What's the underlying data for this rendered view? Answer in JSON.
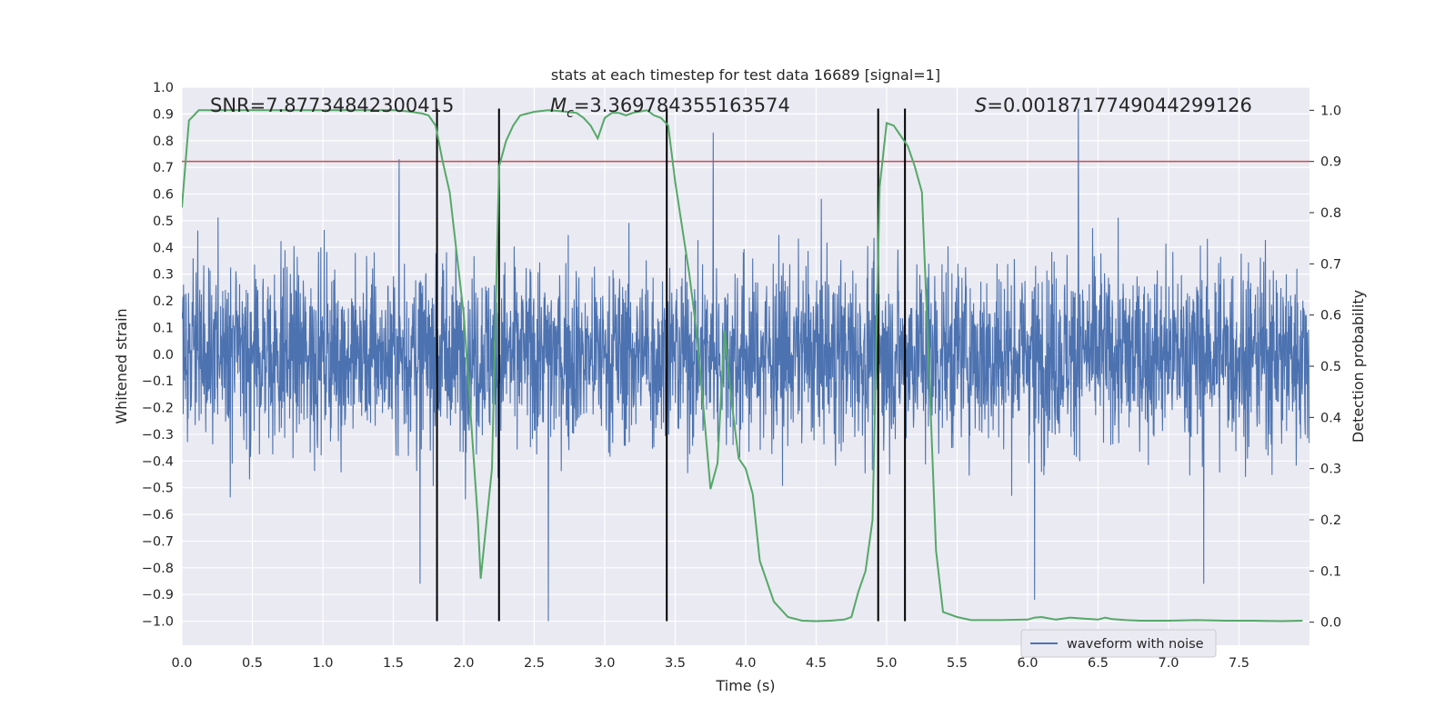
{
  "chart_data": {
    "type": "line",
    "title": "stats at each timestep for test data 16689 [signal=1]",
    "xlabel": "Time (s)",
    "ylabel": "Whitened strain",
    "y2label": "Detection probability",
    "xlim": [
      0.0,
      8.0
    ],
    "ylim": [
      -1.09,
      1.0
    ],
    "y2lim": [
      -0.045,
      1.045
    ],
    "xticks": [
      "0.0",
      "0.5",
      "1.0",
      "1.5",
      "2.0",
      "2.5",
      "3.0",
      "3.5",
      "4.0",
      "4.5",
      "5.0",
      "5.5",
      "6.0",
      "6.5",
      "7.0",
      "7.5"
    ],
    "yticks": [
      "1.0",
      "0.9",
      "0.8",
      "0.7",
      "0.6",
      "0.5",
      "0.4",
      "0.3",
      "0.2",
      "0.1",
      "0.0",
      "−0.1",
      "−0.2",
      "−0.3",
      "−0.4",
      "−0.5",
      "−0.6",
      "−0.7",
      "−0.8",
      "−0.9",
      "−1.0"
    ],
    "y2ticks": [
      "1.0",
      "0.9",
      "0.8",
      "0.7",
      "0.6",
      "0.5",
      "0.4",
      "0.3",
      "0.2",
      "0.1",
      "0.0"
    ],
    "annotations": {
      "snr": "SNR=7.87734842300415",
      "mc_symbol": "M",
      "mc_sub": "c",
      "mc_value": "=3.369784355163574",
      "s_symbol": "S",
      "s_value": "=0.0018717749044299126"
    },
    "legend": {
      "label": "waveform with noise",
      "location": "lower-right"
    },
    "series": [
      {
        "name": "waveform with noise",
        "axis": "left",
        "color": "#4c72b0",
        "description": "dense noisy whitened strain spanning roughly -1.0 to 0.92, bulk within about +/-0.35",
        "peaks": [
          [
            1.54,
            0.73
          ],
          [
            3.77,
            0.83
          ],
          [
            6.36,
            0.92
          ]
        ],
        "troughs": [
          [
            1.69,
            -0.86
          ],
          [
            2.6,
            -1.0
          ],
          [
            6.05,
            -0.92
          ],
          [
            7.25,
            -0.86
          ]
        ]
      },
      {
        "name": "",
        "axis": "right",
        "color": "#55a868",
        "x": [
          0.0,
          0.05,
          0.12,
          0.2,
          0.3,
          0.5,
          0.7,
          0.9,
          1.1,
          1.3,
          1.5,
          1.6,
          1.7,
          1.75,
          1.8,
          1.85,
          1.9,
          2.0,
          2.05,
          2.1,
          2.12,
          2.2,
          2.25,
          2.3,
          2.35,
          2.4,
          2.5,
          2.6,
          2.7,
          2.8,
          2.85,
          2.9,
          2.95,
          3.0,
          3.05,
          3.1,
          3.15,
          3.2,
          3.3,
          3.35,
          3.4,
          3.45,
          3.5,
          3.6,
          3.65,
          3.7,
          3.75,
          3.8,
          3.85,
          3.9,
          3.95,
          4.0,
          4.05,
          4.1,
          4.2,
          4.3,
          4.4,
          4.5,
          4.6,
          4.7,
          4.75,
          4.8,
          4.85,
          4.9,
          4.95,
          5.0,
          5.05,
          5.1,
          5.15,
          5.2,
          5.25,
          5.3,
          5.35,
          5.4,
          5.5,
          5.6,
          5.8,
          6.0,
          6.05,
          6.1,
          6.2,
          6.3,
          6.4,
          6.5,
          6.55,
          6.6,
          6.7,
          6.8,
          7.0,
          7.2,
          7.4,
          7.6,
          7.8,
          7.95
        ],
        "values": [
          0.81,
          0.98,
          1.0,
          1.0,
          1.0,
          1.0,
          1.0,
          1.0,
          1.0,
          1.0,
          1.0,
          0.998,
          0.994,
          0.99,
          0.97,
          0.9,
          0.84,
          0.6,
          0.4,
          0.2,
          0.085,
          0.3,
          0.89,
          0.94,
          0.97,
          0.99,
          0.997,
          1.0,
          0.998,
          0.995,
          0.985,
          0.97,
          0.945,
          0.985,
          0.995,
          0.995,
          0.99,
          0.995,
          1.0,
          0.99,
          0.985,
          0.97,
          0.86,
          0.68,
          0.57,
          0.42,
          0.26,
          0.31,
          0.57,
          0.43,
          0.32,
          0.3,
          0.25,
          0.12,
          0.04,
          0.01,
          0.003,
          0.002,
          0.003,
          0.005,
          0.01,
          0.06,
          0.1,
          0.2,
          0.85,
          0.975,
          0.97,
          0.95,
          0.93,
          0.89,
          0.84,
          0.5,
          0.14,
          0.02,
          0.01,
          0.004,
          0.004,
          0.005,
          0.009,
          0.01,
          0.005,
          0.009,
          0.007,
          0.005,
          0.009,
          0.006,
          0.004,
          0.003,
          0.003,
          0.004,
          0.003,
          0.003,
          0.002,
          0.003
        ]
      },
      {
        "name": "",
        "axis": "right",
        "color": "#c44e52",
        "type": "hline",
        "value": 0.9
      }
    ],
    "vlines": {
      "color": "#000000",
      "x": [
        1.81,
        2.25,
        3.44,
        4.94,
        5.13
      ],
      "ymin": -1.0,
      "ymax": 0.92
    },
    "grid": true,
    "background": "#eaeaf2"
  }
}
